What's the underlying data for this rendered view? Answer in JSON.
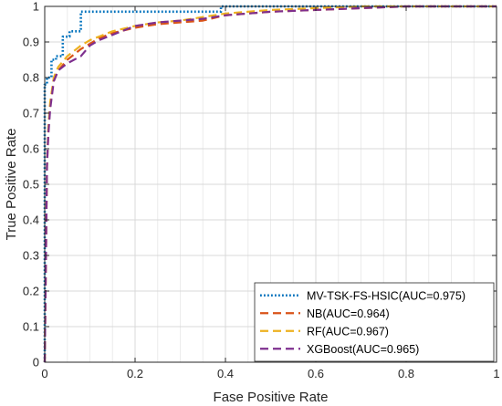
{
  "chart_data": {
    "type": "line",
    "title": "",
    "xlabel": "Fase Positive Rate",
    "ylabel": "True Positive Rate",
    "xlim": [
      0,
      1
    ],
    "ylim": [
      0,
      1
    ],
    "grid": true,
    "legend_position": "bottom-right",
    "xticks": [
      "0",
      "0.2",
      "0.4",
      "0.6",
      "0.8",
      "1"
    ],
    "yticks": [
      "0",
      "0.1",
      "0.2",
      "0.3",
      "0.4",
      "0.5",
      "0.6",
      "0.7",
      "0.8",
      "0.9",
      "1"
    ],
    "series": [
      {
        "name": "MV-TSK-FS-HSIC(AUC=0.975)",
        "color": "#0072BD",
        "dash": "dotted",
        "x": [
          0,
          0,
          0.005,
          0.005,
          0.015,
          0.015,
          0.025,
          0.025,
          0.04,
          0.04,
          0.055,
          0.055,
          0.08,
          0.08,
          0.39,
          0.39,
          1
        ],
        "y": [
          0,
          0.78,
          0.78,
          0.8,
          0.8,
          0.85,
          0.85,
          0.86,
          0.86,
          0.915,
          0.915,
          0.93,
          0.93,
          0.985,
          0.985,
          1,
          1
        ]
      },
      {
        "name": "NB(AUC=0.964)",
        "color": "#D95319",
        "dash": "dashed",
        "x": [
          0,
          0.005,
          0.008,
          0.012,
          0.02,
          0.03,
          0.05,
          0.08,
          0.1,
          0.12,
          0.15,
          0.2,
          0.25,
          0.3,
          0.35,
          0.4,
          0.5,
          0.6,
          0.7,
          0.8,
          0.9,
          1
        ],
        "y": [
          0,
          0.55,
          0.65,
          0.72,
          0.79,
          0.82,
          0.85,
          0.88,
          0.895,
          0.91,
          0.925,
          0.94,
          0.95,
          0.955,
          0.96,
          0.975,
          0.985,
          0.99,
          0.995,
          1,
          1,
          1
        ]
      },
      {
        "name": "RF(AUC=0.967)",
        "color": "#EDB120",
        "dash": "dashed",
        "x": [
          0,
          0.005,
          0.008,
          0.012,
          0.02,
          0.03,
          0.05,
          0.08,
          0.1,
          0.12,
          0.15,
          0.2,
          0.25,
          0.3,
          0.35,
          0.4,
          0.5,
          0.6,
          0.7,
          0.8,
          0.9,
          1
        ],
        "y": [
          0,
          0.56,
          0.66,
          0.73,
          0.8,
          0.83,
          0.86,
          0.89,
          0.905,
          0.915,
          0.93,
          0.945,
          0.955,
          0.96,
          0.97,
          0.98,
          0.99,
          0.995,
          1,
          1,
          1,
          1
        ]
      },
      {
        "name": "XGBoost(AUC=0.965)",
        "color": "#7E2F8E",
        "dash": "dashed",
        "x": [
          0,
          0.005,
          0.008,
          0.012,
          0.02,
          0.03,
          0.05,
          0.08,
          0.1,
          0.12,
          0.15,
          0.2,
          0.25,
          0.3,
          0.35,
          0.4,
          0.5,
          0.6,
          0.7,
          0.8,
          0.9,
          1
        ],
        "y": [
          0,
          0.55,
          0.64,
          0.71,
          0.79,
          0.82,
          0.84,
          0.86,
          0.89,
          0.905,
          0.92,
          0.945,
          0.955,
          0.96,
          0.965,
          0.975,
          0.985,
          0.99,
          0.995,
          1,
          1,
          1
        ]
      }
    ]
  }
}
